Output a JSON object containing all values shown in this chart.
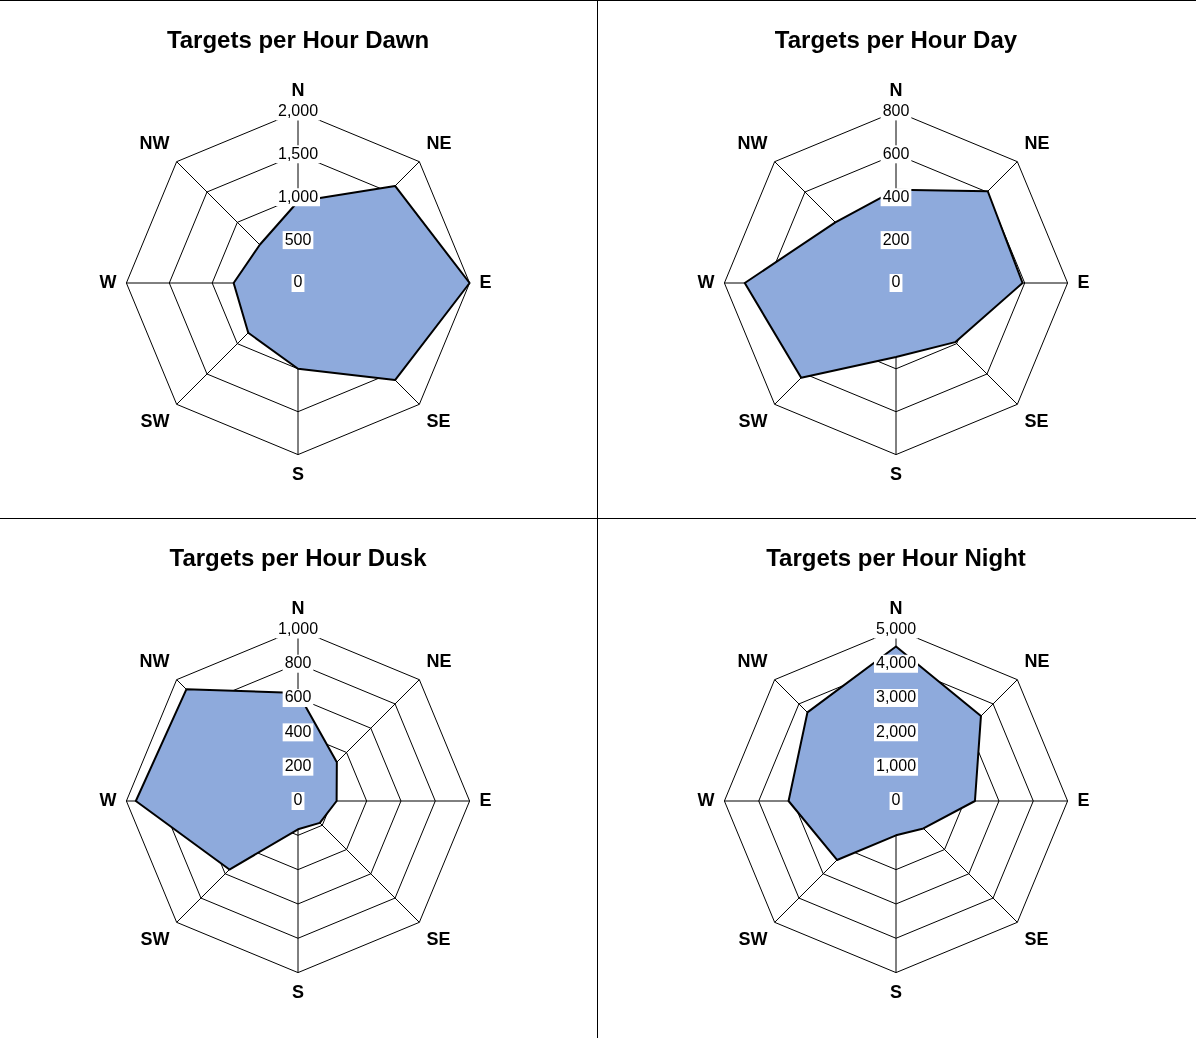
{
  "chart_data": [
    {
      "type": "radar",
      "title": "Targets per Hour Dawn",
      "categories": [
        "N",
        "NE",
        "E",
        "SE",
        "S",
        "SW",
        "W",
        "NW"
      ],
      "series": [
        {
          "color": "#8eaadc",
          "values": [
            950,
            1600,
            2000,
            1600,
            1000,
            820,
            750,
            630
          ]
        }
      ],
      "ylim": [
        0,
        2000
      ],
      "yticks": [
        0,
        500,
        {
          "value": 1000,
          "label": "1,000"
        },
        {
          "value": 1500,
          "label": "1,500"
        },
        {
          "value": 2000,
          "label": "2,000"
        }
      ],
      "marker": "none"
    },
    {
      "type": "radar",
      "title": "Targets per Hour Day",
      "categories": [
        "N",
        "NE",
        "E",
        "SE",
        "S",
        "SW",
        "W",
        "NW"
      ],
      "series": [
        {
          "color": "#8eaadc",
          "values": [
            435,
            605,
            590,
            390,
            345,
            625,
            705,
            400
          ]
        }
      ],
      "ylim": [
        0,
        800
      ],
      "yticks": [
        0,
        200,
        400,
        600,
        800
      ],
      "marker": "none"
    },
    {
      "type": "radar",
      "title": "Targets per Hour Dusk",
      "categories": [
        "N",
        "NE",
        "E",
        "SE",
        "S",
        "SW",
        "W",
        "NW"
      ],
      "series": [
        {
          "color": "#8eaadc",
          "values": [
            630,
            320,
            225,
            180,
            165,
            565,
            945,
            920
          ]
        }
      ],
      "ylim": [
        0,
        1000
      ],
      "yticks": [
        0,
        200,
        400,
        600,
        800,
        {
          "value": 1000,
          "label": "1,000"
        }
      ],
      "marker": "none"
    },
    {
      "type": "radar",
      "title": "Targets per Hour Night",
      "categories": [
        "N",
        "NE",
        "E",
        "SE",
        "S",
        "SW",
        "W",
        "NW"
      ],
      "series": [
        {
          "color": "#8eaadc",
          "values": [
            4500,
            3500,
            2300,
            1130,
            1000,
            2430,
            3130,
            3650
          ]
        }
      ],
      "ylim": [
        0,
        5000
      ],
      "yticks": [
        0,
        {
          "value": 1000,
          "label": "1,000"
        },
        {
          "value": 2000,
          "label": "2,000"
        },
        {
          "value": 3000,
          "label": "3,000"
        },
        {
          "value": 4000,
          "label": "4,000"
        },
        {
          "value": 5000,
          "label": "5,000"
        }
      ],
      "marker": "none"
    }
  ]
}
